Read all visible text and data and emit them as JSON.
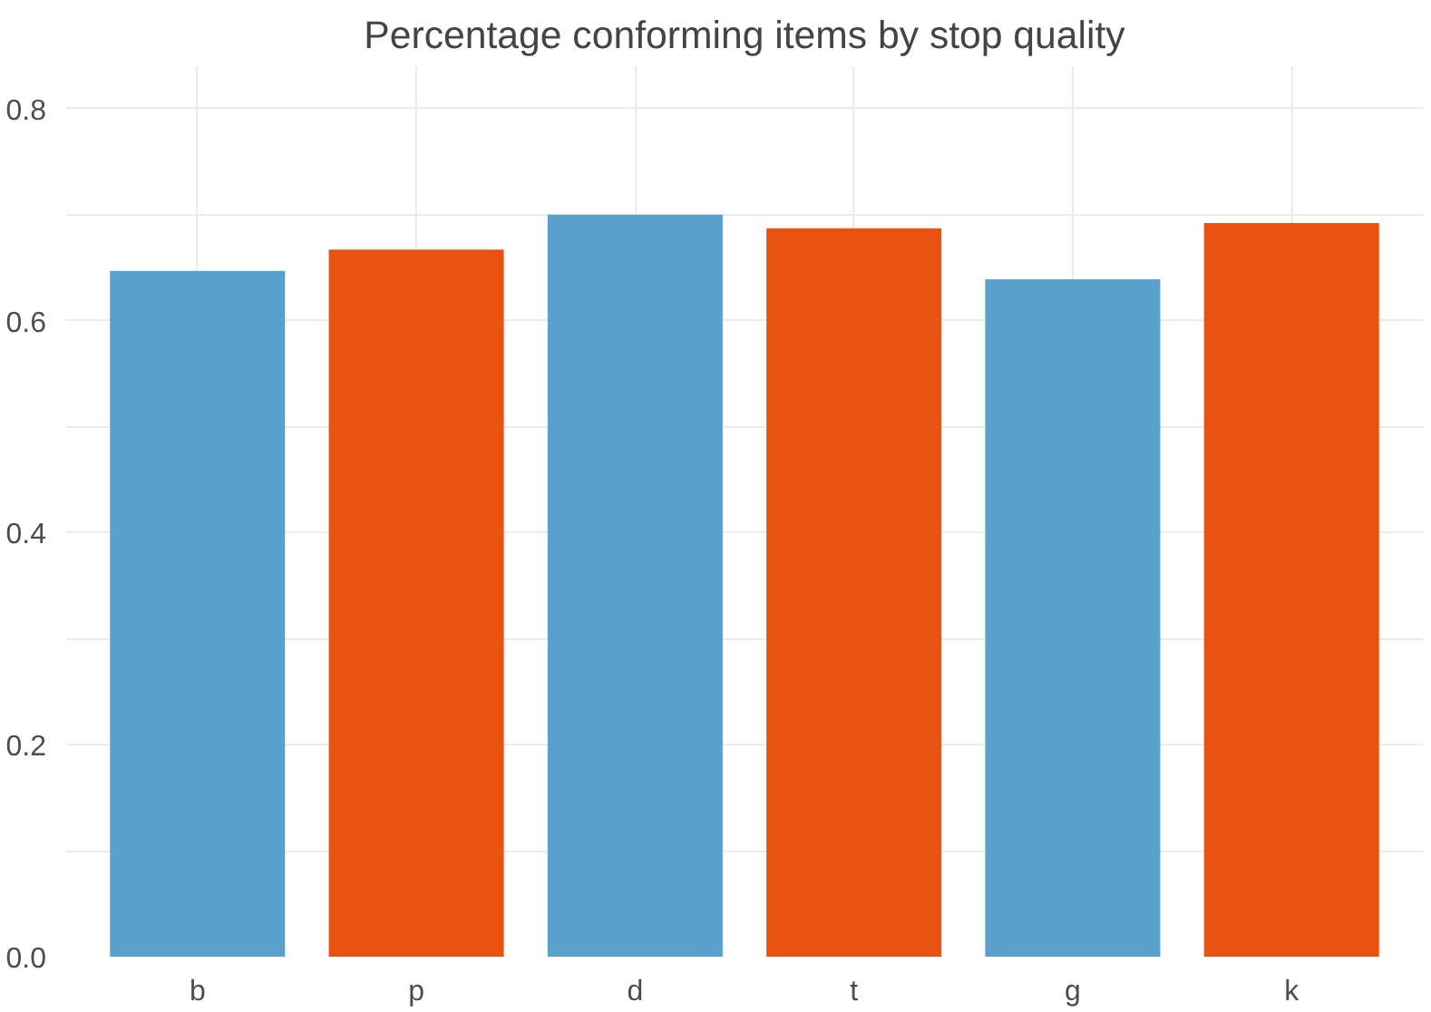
{
  "chart_data": {
    "type": "bar",
    "title": "Percentage conforming items by stop quality",
    "categories": [
      "b",
      "p",
      "d",
      "t",
      "g",
      "k"
    ],
    "values": [
      0.647,
      0.667,
      0.7,
      0.687,
      0.639,
      0.692
    ],
    "colors": [
      "#5aa0cd",
      "#ea5212",
      "#5aa0cd",
      "#ea5212",
      "#5aa0cd",
      "#ea5212"
    ],
    "ylim": [
      0,
      0.84
    ],
    "yticks": [
      {
        "value": 0.0,
        "label": "0.0"
      },
      {
        "value": 0.1,
        "label": null
      },
      {
        "value": 0.2,
        "label": "0.2"
      },
      {
        "value": 0.3,
        "label": null
      },
      {
        "value": 0.4,
        "label": "0.4"
      },
      {
        "value": 0.5,
        "label": null
      },
      {
        "value": 0.6,
        "label": "0.6"
      },
      {
        "value": 0.7,
        "label": null
      },
      {
        "value": 0.8,
        "label": "0.8"
      }
    ],
    "grid": true
  }
}
